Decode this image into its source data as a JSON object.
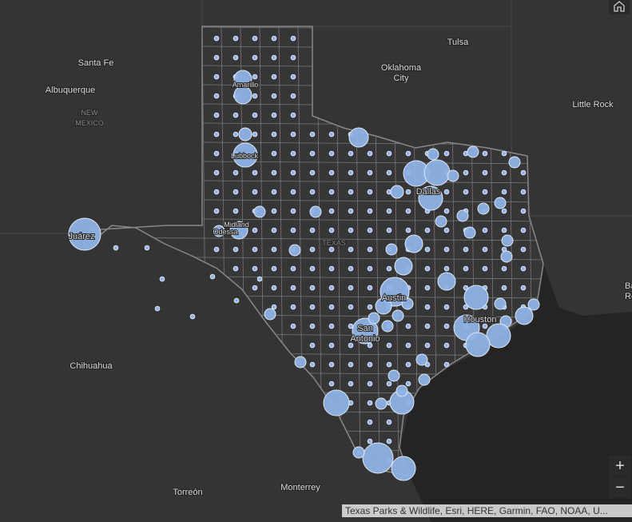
{
  "places": [
    {
      "label": "Santa Fe"
    },
    {
      "label": "Albuquerque"
    },
    {
      "label": "NEW MEXICO"
    },
    {
      "label": "Tulsa"
    },
    {
      "label": "Oklahoma City"
    },
    {
      "label": "Little Rock"
    },
    {
      "label": "Amarillo"
    },
    {
      "label": "Lubbock"
    },
    {
      "label": "Midland"
    },
    {
      "label": "Odessa"
    },
    {
      "label": "TEXAS"
    },
    {
      "label": "Dallas"
    },
    {
      "label": "Austin"
    },
    {
      "label": "San Antonio"
    },
    {
      "label": "Houston"
    },
    {
      "label": "Juárez"
    },
    {
      "label": "Chihuahua"
    },
    {
      "label": "Torreón"
    },
    {
      "label": "Monterrey"
    },
    {
      "label": "Baton Rouge"
    }
  ],
  "controls": {
    "zoom_in": "+",
    "zoom_out": "−"
  },
  "attribution": "Texas Parks & Wildlife, Esri, HERE, Garmin, FAO, NOAA, U..."
}
